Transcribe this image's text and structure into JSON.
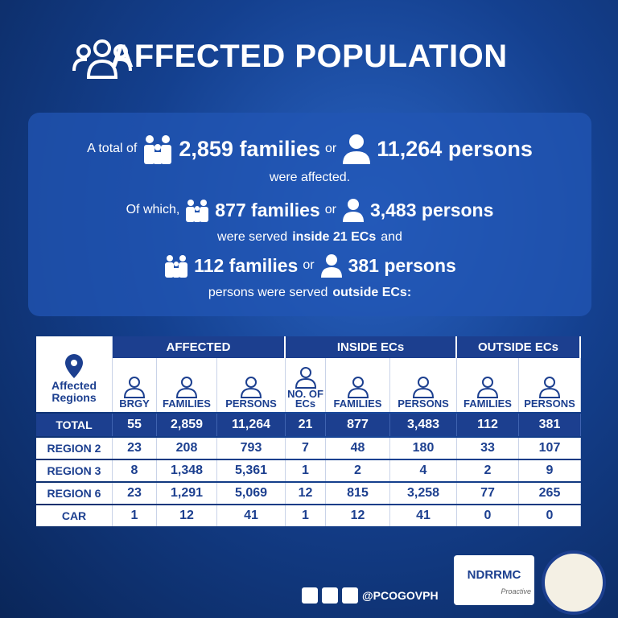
{
  "title": "AFFECTED POPULATION",
  "summary": {
    "line1": {
      "prefix": "A total of",
      "families": "2,859 families",
      "or": "or",
      "persons": "11,264 persons"
    },
    "line2": "were affected.",
    "line3": {
      "prefix": "Of which,",
      "families": "877 families",
      "or": "or",
      "persons": "3,483 persons"
    },
    "line4": {
      "text": "were served",
      "bold": "inside 21 ECs",
      "suffix": "and"
    },
    "line5": {
      "families": "112 families",
      "or": "or",
      "persons": "381 persons"
    },
    "line6": {
      "text": "persons were served",
      "bold": "outside ECs:"
    }
  },
  "table": {
    "corner": "Affected Regions",
    "groups": [
      "AFFECTED",
      "INSIDE ECs",
      "OUTSIDE ECs"
    ],
    "columns": [
      "BRGY",
      "FAMILIES",
      "PERSONS",
      "NO. OF ECs",
      "FAMILIES",
      "PERSONS",
      "FAMILIES",
      "PERSONS"
    ],
    "rows": [
      [
        "TOTAL",
        "55",
        "2,859",
        "11,264",
        "21",
        "877",
        "3,483",
        "112",
        "381"
      ],
      [
        "REGION 2",
        "23",
        "208",
        "793",
        "7",
        "48",
        "180",
        "33",
        "107"
      ],
      [
        "REGION 3",
        "8",
        "1,348",
        "5,361",
        "1",
        "2",
        "4",
        "2",
        "9"
      ],
      [
        "REGION 6",
        "23",
        "1,291",
        "5,069",
        "12",
        "815",
        "3,258",
        "77",
        "265"
      ],
      [
        "CAR",
        "1",
        "12",
        "41",
        "1",
        "12",
        "41",
        "0",
        "0"
      ]
    ]
  },
  "footer": {
    "handle": "@PCOGOVPH",
    "logo": "NDRRMC",
    "logo_tag": "Proactive"
  }
}
